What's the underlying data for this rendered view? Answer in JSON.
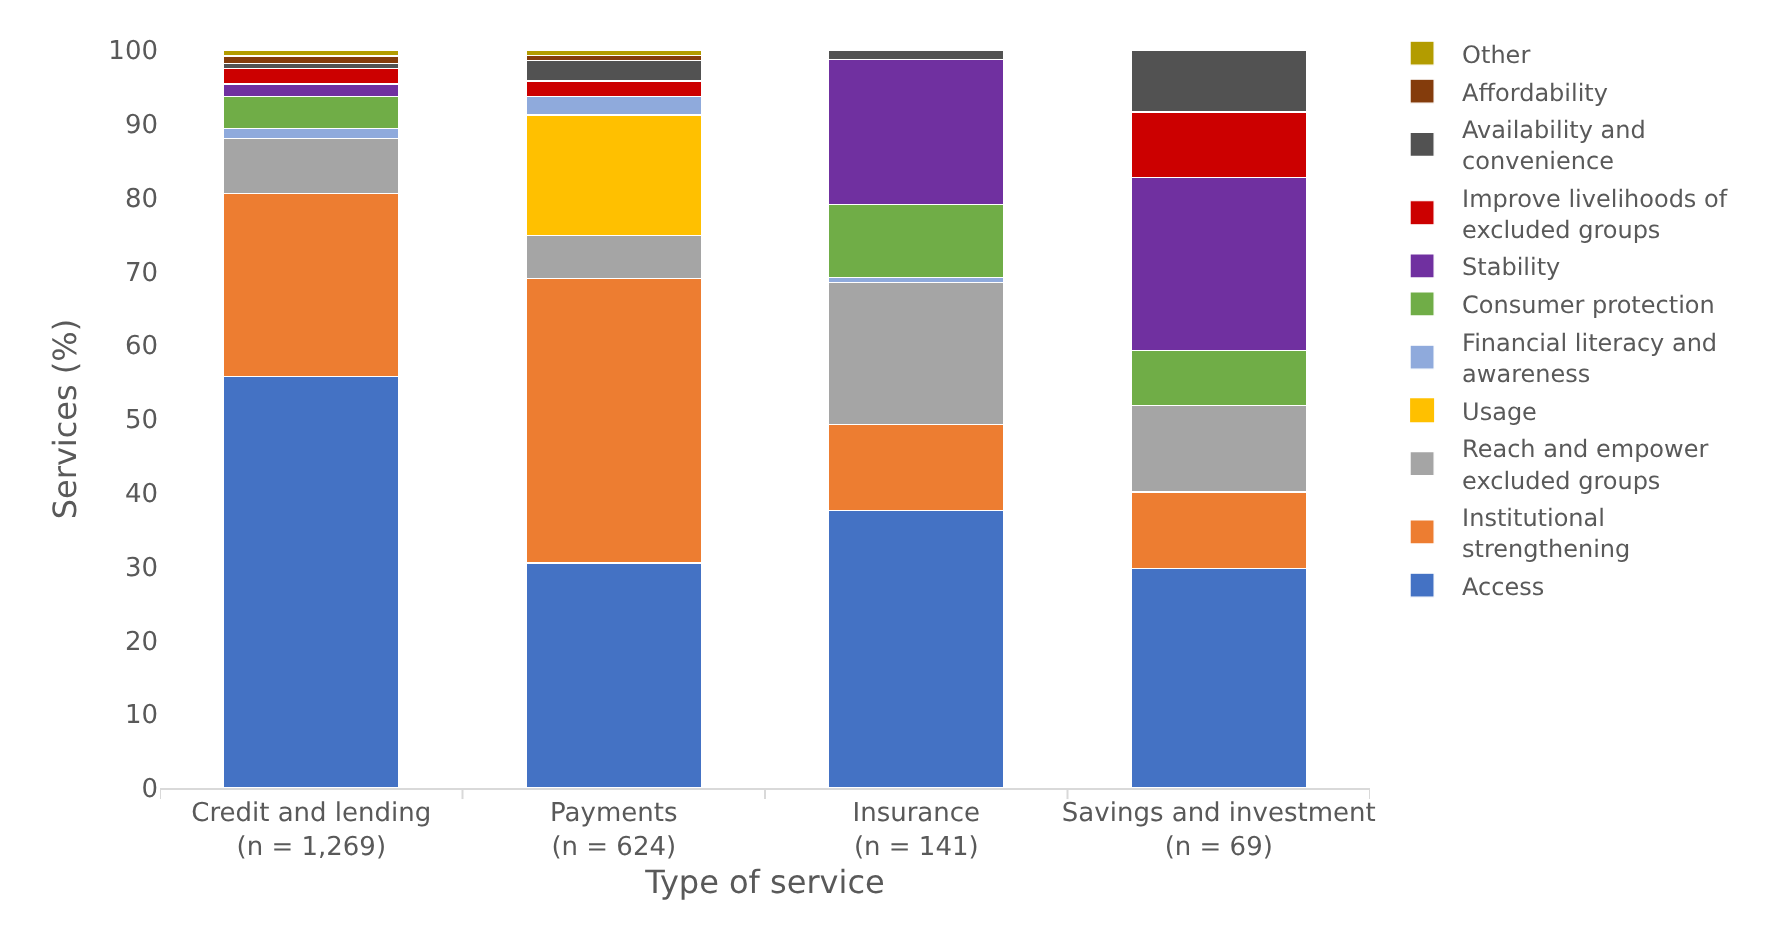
{
  "chart_data": {
    "type": "bar",
    "stacked": true,
    "xlabel": "Type of service",
    "ylabel": "Services (%)",
    "categories": [
      "Credit and lending\n(n = 1,269)",
      "Payments\n(n = 624)",
      "Insurance\n(n = 141)",
      "Savings and investment\n(n = 69)"
    ],
    "ylim": [
      0,
      100
    ],
    "yticks": [
      0,
      10,
      20,
      30,
      40,
      50,
      60,
      70,
      80,
      90,
      100
    ],
    "grid": false,
    "legend": "right",
    "series": [
      {
        "name": "Access",
        "color": "#4472c4",
        "values": [
          55.8,
          30.5,
          37.6,
          29.7
        ]
      },
      {
        "name": "Institutional strengthening",
        "color": "#ed7d31",
        "values": [
          24.8,
          38.5,
          11.7,
          10.4
        ]
      },
      {
        "name": "Reach and empower excluded groups",
        "color": "#a5a5a5",
        "values": [
          7.4,
          5.9,
          19.2,
          11.7
        ]
      },
      {
        "name": "Usage",
        "color": "#ffc000",
        "values": [
          0,
          16.3,
          0,
          0
        ]
      },
      {
        "name": "Financial literacy and awareness",
        "color": "#8faadc",
        "values": [
          1.4,
          2.5,
          0.7,
          0
        ]
      },
      {
        "name": "Consumer protection",
        "color": "#70ad47",
        "values": [
          4.3,
          0,
          9.9,
          7.5
        ]
      },
      {
        "name": "Stability",
        "color": "#7030a0",
        "values": [
          1.7,
          0,
          19.6,
          23.4
        ]
      },
      {
        "name": "Improve livelihoods of excluded groups",
        "color": "#cc0000",
        "values": [
          2.1,
          2.1,
          0,
          8.9
        ]
      },
      {
        "name": "Availability and convenience",
        "color": "#525252",
        "values": [
          0.7,
          2.8,
          1.3,
          8.4
        ]
      },
      {
        "name": "Affordability",
        "color": "#843c0c",
        "values": [
          1.0,
          0.7,
          0,
          0
        ]
      },
      {
        "name": "Other",
        "color": "#b39c00",
        "values": [
          0.8,
          0.7,
          0,
          0
        ]
      }
    ]
  }
}
